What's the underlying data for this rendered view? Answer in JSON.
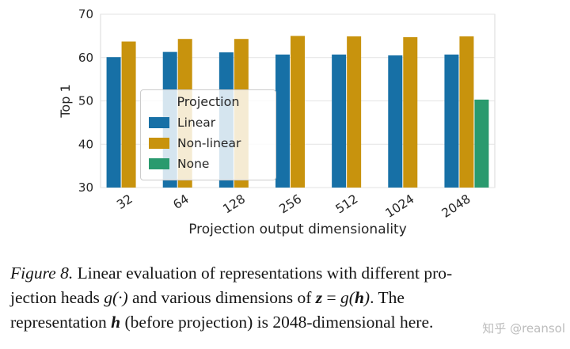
{
  "figure": {
    "watermark": "知乎 @reansol"
  },
  "chart_data": {
    "type": "bar",
    "title": "",
    "xlabel": "Projection output dimensionality",
    "ylabel": "Top 1",
    "categories": [
      "32",
      "64",
      "128",
      "256",
      "512",
      "1024",
      "2048"
    ],
    "series": [
      {
        "name": "Linear",
        "color": "#1770A6",
        "values": [
          60.1,
          61.3,
          61.2,
          60.7,
          60.7,
          60.5,
          60.7
        ]
      },
      {
        "name": "Non-linear",
        "color": "#C8930D",
        "values": [
          63.7,
          64.3,
          64.3,
          65.0,
          64.9,
          64.7,
          64.9
        ]
      },
      {
        "name": "None",
        "color": "#2A9A6E",
        "values": [
          null,
          null,
          null,
          null,
          null,
          null,
          50.3
        ]
      }
    ],
    "ylim": [
      30,
      70
    ],
    "yticks": [
      30,
      40,
      50,
      60,
      70
    ],
    "grid": true,
    "legend": {
      "title": "Projection",
      "position": "upper-left-inside"
    }
  },
  "caption": {
    "figure_label": "Figure 8.",
    "l1": " Linear evaluation of representations with different pro-",
    "l2a": "jection heads ",
    "l2m1": "g(·)",
    "l2b": " and various dimensions of ",
    "l2z": "z",
    "l2eq": " = ",
    "l2g": "g(",
    "l2h": "h",
    "l2close": ")",
    "l2c": ".  The",
    "l3a": "representation ",
    "l3m": "h",
    "l3b": " (before projection) is 2048-dimensional here."
  }
}
